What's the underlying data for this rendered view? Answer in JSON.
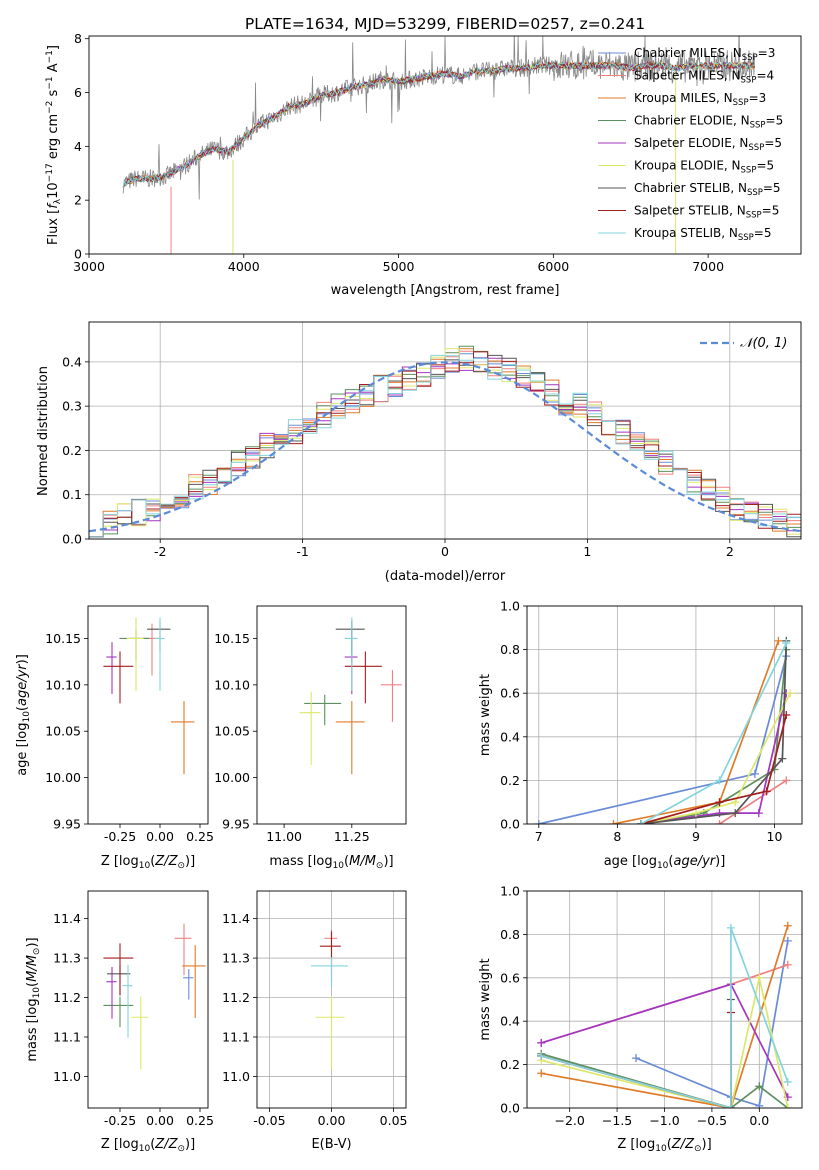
{
  "figure_title": "PLATE=1634, MJD=53299, FIBERID=0257, z=0.241",
  "colors": {
    "Chabrier MILES": "#6a8bd6",
    "Salpeter MILES": "#f08080",
    "Kroupa MILES": "#e07b28",
    "Chabrier ELODIE": "#5e8f5e",
    "Salpeter ELODIE": "#a335c0",
    "Kroupa ELODIE": "#dde86a",
    "Chabrier STELIB": "#555555",
    "Salpeter STELIB": "#a31e1e",
    "Kroupa STELIB": "#84d4dd"
  },
  "chart_data": [
    {
      "id": "spectrum",
      "type": "line",
      "xlabel": "wavelength [Angstrom, rest frame]",
      "ylabel": "Flux [f_λ10^-17 erg cm^-2 s^-1 A^-1]",
      "xlim": [
        3000,
        7600
      ],
      "ylim": [
        0,
        8.1
      ],
      "xticks": [
        3000,
        4000,
        5000,
        6000,
        7000
      ],
      "yticks": [
        0,
        2,
        4,
        6,
        8
      ],
      "grid": false,
      "legend_position": "top-right",
      "legend": [
        {
          "name": "Chabrier MILES",
          "sub": "SSP",
          "n": "=3"
        },
        {
          "name": "Salpeter MILES",
          "sub": "SSP",
          "n": "=4"
        },
        {
          "name": "Kroupa MILES",
          "sub": "SSP",
          "n": "=3"
        },
        {
          "name": "Chabrier ELODIE",
          "sub": "SSP",
          "n": "=5"
        },
        {
          "name": "Salpeter ELODIE",
          "sub": "SSP",
          "n": "=5"
        },
        {
          "name": "Kroupa ELODIE",
          "sub": "SSP",
          "n": "=5"
        },
        {
          "name": "Chabrier STELIB",
          "sub": "SSP",
          "n": "=5"
        },
        {
          "name": "Salpeter STELIB",
          "sub": "SSP",
          "n": "=5"
        },
        {
          "name": "Kroupa STELIB",
          "sub": "SSP",
          "n": "=5"
        }
      ],
      "data_x": [
        3220,
        3300,
        3400,
        3500,
        3600,
        3700,
        3800,
        3900,
        4000,
        4100,
        4200,
        4300,
        4400,
        4500,
        4600,
        4700,
        4800,
        4900,
        5000,
        5100,
        5200,
        5300,
        5400,
        5500,
        5600,
        5700,
        5800,
        5900,
        6000,
        6100,
        6200,
        6300,
        6400,
        6500,
        6600,
        6700,
        6800,
        6900,
        7000,
        7100,
        7200,
        7300
      ],
      "data_y": [
        2.6,
        2.8,
        2.8,
        2.9,
        3.2,
        3.6,
        3.9,
        3.8,
        4.3,
        4.8,
        5.1,
        5.5,
        5.6,
        5.9,
        6.0,
        6.2,
        6.3,
        6.5,
        6.4,
        6.5,
        6.6,
        6.7,
        6.6,
        6.8,
        6.8,
        6.9,
        6.9,
        7.0,
        7.0,
        7.0,
        7.0,
        7.0,
        7.0,
        6.9,
        7.0,
        7.0,
        6.9,
        7.0,
        7.0,
        7.0,
        7.0,
        7.0
      ],
      "model_start_x": [
        3220,
        3220,
        3220,
        3220,
        3530,
        3930,
        3220,
        3220,
        3220
      ]
    },
    {
      "id": "residuals",
      "type": "line",
      "xlabel": "(data-model)/error",
      "ylabel": "Normed distribution",
      "xlim": [
        -2.5,
        2.5
      ],
      "ylim": [
        0,
        0.49
      ],
      "xticks": [
        -2,
        -1,
        0,
        1,
        2
      ],
      "yticks": [
        0.0,
        0.1,
        0.2,
        0.3,
        0.4
      ],
      "grid": true,
      "legend_position": "top-right",
      "legend": [
        {
          "name": "𝒩(0, 1)"
        }
      ],
      "bin_width": 0.1,
      "bin_start": -2.5,
      "histogram": [
        0.03,
        0.04,
        0.05,
        0.06,
        0.07,
        0.09,
        0.1,
        0.12,
        0.13,
        0.15,
        0.17,
        0.19,
        0.21,
        0.22,
        0.24,
        0.26,
        0.28,
        0.3,
        0.31,
        0.32,
        0.34,
        0.35,
        0.36,
        0.37,
        0.39,
        0.4,
        0.41,
        0.4,
        0.39,
        0.38,
        0.37,
        0.35,
        0.33,
        0.31,
        0.3,
        0.28,
        0.26,
        0.24,
        0.22,
        0.2,
        0.17,
        0.15,
        0.13,
        0.11,
        0.09,
        0.07,
        0.06,
        0.05,
        0.04,
        0.03
      ]
    },
    {
      "id": "age-vs-Z",
      "type": "scatter",
      "xlabel": "Z [log10(Z/Z⊙)]",
      "ylabel": "age  [log10(age/yr)]",
      "xlim": [
        -0.45,
        0.3
      ],
      "ylim": [
        9.95,
        10.185
      ],
      "xticks": [
        -0.25,
        0.0,
        0.25
      ],
      "yticks": [
        9.95,
        10.0,
        10.05,
        10.1,
        10.15
      ],
      "grid": false,
      "points": [
        {
          "model": "Chabrier MILES",
          "x": -0.15,
          "xerr": [
            0.0,
            0.0
          ],
          "y": 10.15,
          "yerr": [
            0.12,
            0.02
          ]
        },
        {
          "model": "Salpeter MILES",
          "x": -0.05,
          "xerr": [
            0.0,
            0.0
          ],
          "y": 10.15,
          "yerr": [
            0.0,
            0.0
          ]
        },
        {
          "model": "Kroupa MILES",
          "x": 0.15,
          "xerr": [
            0.1,
            0.0
          ],
          "y": 10.06,
          "yerr": [
            0.0,
            0.0
          ]
        },
        {
          "model": "Chabrier ELODIE",
          "x": -0.15,
          "xerr": [
            0.0,
            0.0
          ],
          "y": 10.15,
          "yerr": [
            0.0,
            0.0
          ]
        },
        {
          "model": "Salpeter ELODIE",
          "x": -0.3,
          "xerr": [
            0.0,
            0.0
          ],
          "y": 10.13,
          "yerr": [
            0.0,
            0.0
          ]
        },
        {
          "model": "Kroupa ELODIE",
          "x": -0.15,
          "xerr": [
            0.0,
            0.0
          ],
          "y": 10.15,
          "yerr": [
            0.0,
            0.0
          ]
        },
        {
          "model": "Chabrier STELIB",
          "x": 0.0,
          "xerr": [
            0.0,
            0.0
          ],
          "y": 10.16,
          "yerr": [
            0.0,
            0.0
          ]
        },
        {
          "model": "Salpeter STELIB",
          "x": -0.25,
          "xerr": [
            0.0,
            0.0
          ],
          "y": 10.12,
          "yerr": [
            0.0,
            0.0
          ]
        },
        {
          "model": "Kroupa STELIB",
          "x": 0.0,
          "xerr": [
            0.0,
            0.0
          ],
          "y": 10.15,
          "yerr": [
            0.0,
            0.0
          ]
        }
      ]
    },
    {
      "id": "age-vs-mass",
      "type": "scatter",
      "xlabel": "mass [log10(M/M⊙)]",
      "ylabel": "",
      "xlim": [
        10.9,
        11.45
      ],
      "ylim": [
        9.95,
        10.185
      ],
      "xticks": [
        11.0,
        11.25
      ],
      "yticks": [
        9.95,
        10.0,
        10.05,
        10.1,
        10.15
      ],
      "grid": false,
      "points": [
        {
          "model": "Chabrier MILES",
          "x": 11.25,
          "xerr": [
            0.0,
            0.0
          ],
          "y": 10.15,
          "yerr": [
            0.0,
            0.0
          ]
        },
        {
          "model": "Salpeter MILES",
          "x": 11.4,
          "xerr": [
            0.0,
            0.0
          ],
          "y": 10.1,
          "yerr": [
            0.0,
            0.0
          ]
        },
        {
          "model": "Kroupa MILES",
          "x": 11.25,
          "xerr": [
            0.0,
            0.0
          ],
          "y": 10.06,
          "yerr": [
            0.0,
            0.0
          ]
        },
        {
          "model": "Chabrier ELODIE",
          "x": 11.15,
          "xerr": [
            0.0,
            0.0
          ],
          "y": 10.08,
          "yerr": [
            0.0,
            0.0
          ]
        },
        {
          "model": "Salpeter ELODIE",
          "x": 11.25,
          "xerr": [
            0.0,
            0.0
          ],
          "y": 10.13,
          "yerr": [
            0.0,
            0.0
          ]
        },
        {
          "model": "Kroupa ELODIE",
          "x": 11.1,
          "xerr": [
            0.0,
            0.0
          ],
          "y": 10.07,
          "yerr": [
            0.0,
            0.0
          ]
        },
        {
          "model": "Chabrier STELIB",
          "x": 11.25,
          "xerr": [
            0.0,
            0.0
          ],
          "y": 10.16,
          "yerr": [
            0.0,
            0.0
          ]
        },
        {
          "model": "Salpeter STELIB",
          "x": 11.3,
          "xerr": [
            0.0,
            0.0
          ],
          "y": 10.12,
          "yerr": [
            0.0,
            0.0
          ]
        },
        {
          "model": "Kroupa STELIB",
          "x": 11.25,
          "xerr": [
            0.0,
            0.0
          ],
          "y": 10.15,
          "yerr": [
            0.0,
            0.0
          ]
        }
      ]
    },
    {
      "id": "weight-vs-age",
      "type": "line",
      "xlabel": "age  [log10(age/yr)]",
      "ylabel": "mass weight",
      "xlim": [
        6.85,
        10.35
      ],
      "ylim": [
        0,
        1.0
      ],
      "xticks": [
        7,
        8,
        9,
        10
      ],
      "yticks": [
        0.0,
        0.2,
        0.4,
        0.6,
        0.8,
        1.0
      ],
      "grid": true,
      "series": [
        {
          "model": "Chabrier MILES",
          "x": [
            7.0,
            9.75,
            10.15
          ],
          "y": [
            0.0,
            0.23,
            0.77
          ]
        },
        {
          "model": "Salpeter MILES",
          "x": [
            9.3,
            10.15
          ],
          "y": [
            0.0,
            0.2
          ]
        },
        {
          "model": "Kroupa MILES",
          "x": [
            7.95,
            9.3,
            10.05
          ],
          "y": [
            0.0,
            0.1,
            0.84
          ]
        },
        {
          "model": "Chabrier ELODIE",
          "x": [
            8.3,
            9.1,
            10.0,
            10.15
          ],
          "y": [
            0.0,
            0.05,
            0.25,
            0.8
          ]
        },
        {
          "model": "Salpeter ELODIE",
          "x": [
            8.3,
            9.3,
            9.8,
            10.15
          ],
          "y": [
            0.0,
            0.05,
            0.05,
            0.6
          ]
        },
        {
          "model": "Kroupa ELODIE",
          "x": [
            8.3,
            9.0,
            9.5,
            10.2
          ],
          "y": [
            0.0,
            0.05,
            0.1,
            0.6
          ]
        },
        {
          "model": "Chabrier STELIB",
          "x": [
            8.3,
            9.5,
            10.1,
            10.15
          ],
          "y": [
            0.0,
            0.05,
            0.3,
            0.84
          ]
        },
        {
          "model": "Salpeter STELIB",
          "x": [
            8.3,
            9.3,
            9.9,
            10.15
          ],
          "y": [
            0.0,
            0.1,
            0.15,
            0.5
          ]
        },
        {
          "model": "Kroupa STELIB",
          "x": [
            8.3,
            9.3,
            10.15
          ],
          "y": [
            0.0,
            0.2,
            0.83
          ]
        }
      ]
    },
    {
      "id": "mass-vs-Z",
      "type": "scatter",
      "xlabel": "Z [log10(Z/Z⊙)]",
      "ylabel": "mass [log10(M/M⊙)]",
      "xlim": [
        -0.45,
        0.3
      ],
      "ylim": [
        10.92,
        11.47
      ],
      "xticks": [
        -0.25,
        0.0,
        0.25
      ],
      "yticks": [
        11.0,
        11.1,
        11.2,
        11.3,
        11.4
      ],
      "grid": false,
      "points": [
        {
          "model": "Chabrier MILES",
          "x": 0.18,
          "xerr": [
            0.0,
            0.0
          ],
          "y": 11.25,
          "yerr": [
            0.0,
            0.0
          ]
        },
        {
          "model": "Salpeter MILES",
          "x": 0.15,
          "xerr": [
            0.0,
            0.0
          ],
          "y": 11.35,
          "yerr": [
            0.0,
            0.0
          ]
        },
        {
          "model": "Kroupa MILES",
          "x": 0.22,
          "xerr": [
            0.0,
            0.0
          ],
          "y": 11.28,
          "yerr": [
            0.0,
            0.0
          ]
        },
        {
          "model": "Chabrier ELODIE",
          "x": -0.25,
          "xerr": [
            0.0,
            0.0
          ],
          "y": 11.18,
          "yerr": [
            0.0,
            0.0
          ]
        },
        {
          "model": "Salpeter ELODIE",
          "x": -0.3,
          "xerr": [
            0.0,
            0.0
          ],
          "y": 11.24,
          "yerr": [
            0.0,
            0.0
          ]
        },
        {
          "model": "Kroupa ELODIE",
          "x": -0.12,
          "xerr": [
            0.0,
            0.0
          ],
          "y": 11.15,
          "yerr": [
            0.0,
            0.0
          ]
        },
        {
          "model": "Chabrier STELIB",
          "x": -0.25,
          "xerr": [
            0.0,
            0.0
          ],
          "y": 11.26,
          "yerr": [
            0.0,
            0.0
          ]
        },
        {
          "model": "Salpeter STELIB",
          "x": -0.25,
          "xerr": [
            0.0,
            0.0
          ],
          "y": 11.3,
          "yerr": [
            0.0,
            0.0
          ]
        },
        {
          "model": "Kroupa STELIB",
          "x": -0.2,
          "xerr": [
            0.0,
            0.0
          ],
          "y": 11.23,
          "yerr": [
            0.0,
            0.0
          ]
        }
      ]
    },
    {
      "id": "mass-vs-EBV",
      "type": "scatter",
      "xlabel": "E(B-V)",
      "ylabel": "",
      "xlim": [
        -0.06,
        0.06
      ],
      "ylim": [
        10.92,
        11.47
      ],
      "xticks": [
        -0.05,
        0.0,
        0.05
      ],
      "yticks": [
        11.0,
        11.1,
        11.2,
        11.3,
        11.4
      ],
      "grid": true,
      "points": [
        {
          "model": "Salpeter MILES",
          "x": 0.0,
          "xerr": [
            0.0,
            0.0
          ],
          "y": 11.35,
          "yerr": [
            0.0,
            0.0
          ]
        },
        {
          "model": "Salpeter STELIB",
          "x": 0.0,
          "xerr": [
            0.0,
            0.0
          ],
          "y": 11.33,
          "yerr": [
            0.0,
            0.0
          ]
        },
        {
          "model": "Kroupa ELODIE",
          "x": 0.0,
          "xerr": [
            0.0,
            0.0
          ],
          "y": 11.15,
          "yerr": [
            0.0,
            0.0
          ]
        },
        {
          "model": "Kroupa STELIB",
          "x": 0.0,
          "xerr": [
            0.0,
            0.0
          ],
          "y": 11.28,
          "yerr": [
            0.0,
            0.0
          ]
        }
      ]
    },
    {
      "id": "weight-vs-Z",
      "type": "line",
      "xlabel": "Z [log10(Z/Z⊙)]",
      "ylabel": "mass weight",
      "xlim": [
        -2.45,
        0.45
      ],
      "ylim": [
        0,
        1.0
      ],
      "xticks": [
        -2.0,
        -1.5,
        -1.0,
        -0.5,
        0.0
      ],
      "yticks": [
        0.0,
        0.2,
        0.4,
        0.6,
        0.8,
        1.0
      ],
      "grid": true,
      "series": [
        {
          "model": "Chabrier MILES",
          "x": [
            -1.3,
            -0.3,
            0.0,
            0.3
          ],
          "y": [
            0.23,
            0.05,
            0.01,
            0.77
          ]
        },
        {
          "model": "Salpeter MILES",
          "x": [
            -2.3,
            -0.3,
            0.3
          ],
          "y": [
            0.3,
            0.57,
            0.66
          ]
        },
        {
          "model": "Kroupa MILES",
          "x": [
            -2.3,
            -0.3,
            0.3
          ],
          "y": [
            0.16,
            0.0,
            0.84
          ]
        },
        {
          "model": "Chabrier ELODIE",
          "x": [
            -2.3,
            -0.3,
            0.0,
            0.3
          ],
          "y": [
            0.25,
            0.0,
            0.1,
            0.0
          ]
        },
        {
          "model": "Salpeter ELODIE",
          "x": [
            -2.3,
            -0.3,
            0.3
          ],
          "y": [
            0.3,
            0.57,
            0.05
          ]
        },
        {
          "model": "Kroupa ELODIE",
          "x": [
            -2.3,
            -0.3,
            0.0,
            0.3
          ],
          "y": [
            0.22,
            0.0,
            0.6,
            0.0
          ]
        },
        {
          "model": "Chabrier STELIB",
          "x": [
            -2.3,
            -0.3,
            -0.3
          ],
          "y": [
            0.24,
            0.0,
            0.5
          ]
        },
        {
          "model": "Salpeter STELIB",
          "x": [
            -2.3,
            -0.3,
            -0.3
          ],
          "y": [
            0.24,
            0.0,
            0.44
          ]
        },
        {
          "model": "Kroupa STELIB",
          "x": [
            -2.3,
            -0.3,
            -0.3,
            0.3
          ],
          "y": [
            0.24,
            0.0,
            0.83,
            0.12
          ]
        }
      ]
    }
  ]
}
